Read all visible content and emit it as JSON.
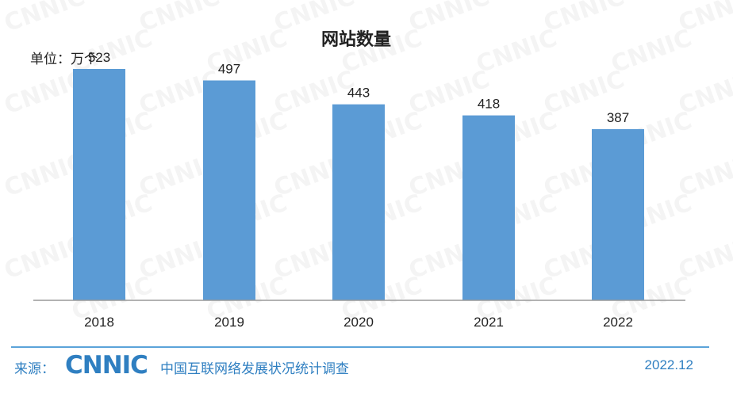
{
  "watermark_text": "CNNIC",
  "chart_data": {
    "type": "bar",
    "title": "网站数量",
    "unit_label": "单位：万个",
    "categories": [
      "2018",
      "2019",
      "2020",
      "2021",
      "2022"
    ],
    "values": [
      523,
      497,
      443,
      418,
      387
    ],
    "ylim": [
      0,
      600
    ],
    "bar_color": "#5b9bd5",
    "grid": false,
    "data_labels": true
  },
  "footer": {
    "source_label": "来源：",
    "logo_text": "CNNIC",
    "org_name": "中国互联网络发展状况统计调查",
    "date": "2022.12"
  }
}
